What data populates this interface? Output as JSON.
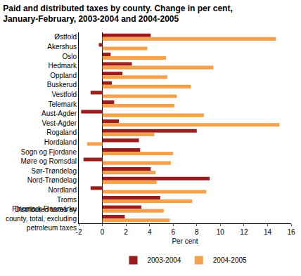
{
  "chart_data": {
    "type": "bar",
    "orientation": "horizontal",
    "title": "Paid and distributed taxes by county. Change in per cent, January-February, 2003-2004 and 2004-2005",
    "x_label": "Per cent",
    "categories": [
      "Østfold",
      "Akershus",
      "Oslo",
      "Hedmark",
      "Oppland",
      "Buskerud",
      "Vestfold",
      "Telemark",
      "Aust-Agder",
      "Vest-Agder",
      "Rogaland",
      "Hordaland",
      "Sogn og Fjordane",
      "Møre og Romsdal",
      "Sør-Trøndelag",
      "Nord-Trøndelag",
      "Nordland",
      "Troms",
      "Finnmark Finnmárku",
      "Distributed taxes by county, total, excluding petroleum taxes"
    ],
    "series": [
      {
        "name": "2003-2004",
        "color": "#9b1c1c",
        "values": [
          4.1,
          -0.3,
          0.7,
          2.5,
          1.7,
          0.8,
          -1.0,
          1.0,
          -1.8,
          1.4,
          8.0,
          3.1,
          3.2,
          -1.6,
          4.1,
          9.1,
          -1.0,
          4.9,
          3.3,
          1.9
        ]
      },
      {
        "name": "2004-2005",
        "color": "#f5a04a",
        "values": [
          14.7,
          3.8,
          5.4,
          9.4,
          5.5,
          7.5,
          6.3,
          6.1,
          8.6,
          15.0,
          4.4,
          -1.3,
          6.0,
          5.8,
          4.5,
          4.6,
          8.8,
          7.6,
          5.2,
          5.7
        ]
      }
    ],
    "xlim": [
      -2,
      16
    ],
    "xticks": [
      -2,
      0,
      2,
      4,
      6,
      8,
      10,
      12,
      14,
      16
    ],
    "grid": false,
    "legend": "bottom"
  }
}
